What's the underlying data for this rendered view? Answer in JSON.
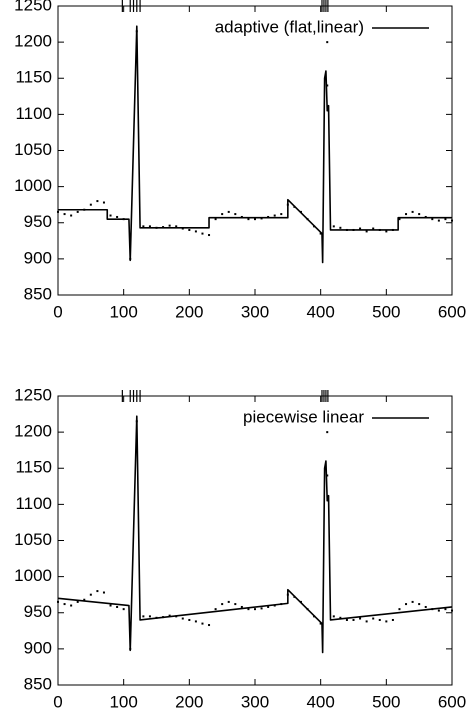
{
  "chart_data": [
    {
      "type": "line",
      "xlim": [
        0,
        600
      ],
      "xticks": [
        0,
        100,
        200,
        300,
        400,
        500,
        600
      ],
      "ylim": [
        850,
        1250
      ],
      "yticks": [
        850,
        900,
        950,
        1000,
        1050,
        1100,
        1150,
        1200,
        1250
      ],
      "legend": "top-right",
      "breakpoints": [
        98,
        110,
        115,
        120,
        125,
        402,
        405,
        408,
        411
      ],
      "series": [
        {
          "name": "adaptive (flat,linear)",
          "color": "#000000",
          "x": [
            0,
            75,
            75,
            108,
            110,
            120,
            125,
            230,
            230,
            350,
            350,
            402,
            403,
            406,
            408,
            410,
            412,
            415,
            518,
            518,
            600
          ],
          "values": [
            968,
            968,
            955,
            955,
            898,
            1222,
            943,
            943,
            957,
            957,
            982,
            935,
            895,
            1150,
            1160,
            1105,
            1112,
            940,
            940,
            957,
            957
          ]
        },
        {
          "color": "#000000",
          "marker": "dot",
          "x": [
            0,
            10,
            20,
            30,
            40,
            50,
            60,
            70,
            80,
            90,
            100,
            110,
            120,
            130,
            140,
            150,
            160,
            170,
            180,
            190,
            200,
            210,
            220,
            230,
            240,
            250,
            260,
            270,
            280,
            290,
            300,
            310,
            320,
            330,
            340,
            350,
            360,
            370,
            380,
            390,
            400,
            410,
            410,
            420,
            430,
            440,
            450,
            460,
            470,
            480,
            490,
            500,
            510,
            520,
            530,
            540,
            550,
            560,
            570,
            580,
            590,
            600
          ],
          "values": [
            965,
            962,
            960,
            965,
            968,
            975,
            980,
            978,
            960,
            958,
            955,
            900,
            1215,
            945,
            945,
            943,
            944,
            946,
            945,
            942,
            940,
            938,
            935,
            933,
            955,
            962,
            965,
            962,
            958,
            955,
            955,
            956,
            958,
            960,
            962,
            975,
            972,
            965,
            955,
            945,
            935,
            1140,
            1200,
            945,
            943,
            940,
            940,
            942,
            938,
            942,
            940,
            938,
            940,
            955,
            962,
            965,
            962,
            958,
            955,
            953,
            955,
            953
          ]
        }
      ]
    },
    {
      "type": "line",
      "xlim": [
        0,
        600
      ],
      "xticks": [
        0,
        100,
        200,
        300,
        400,
        500,
        600
      ],
      "ylim": [
        850,
        1250
      ],
      "yticks": [
        850,
        900,
        950,
        1000,
        1050,
        1100,
        1150,
        1200,
        1250
      ],
      "legend": "top-right",
      "breakpoints": [
        98,
        110,
        115,
        120,
        125,
        402,
        405,
        408,
        411
      ],
      "series": [
        {
          "name": "piecewise linear",
          "color": "#000000",
          "x": [
            0,
            108,
            110,
            120,
            125,
            350,
            350,
            402,
            403,
            406,
            408,
            410,
            412,
            415,
            600
          ],
          "values": [
            970,
            960,
            898,
            1222,
            940,
            963,
            982,
            935,
            895,
            1150,
            1160,
            1105,
            1112,
            940,
            958
          ]
        },
        {
          "color": "#000000",
          "marker": "dot",
          "x": [
            0,
            10,
            20,
            30,
            40,
            50,
            60,
            70,
            80,
            90,
            100,
            110,
            120,
            130,
            140,
            150,
            160,
            170,
            180,
            190,
            200,
            210,
            220,
            230,
            240,
            250,
            260,
            270,
            280,
            290,
            300,
            310,
            320,
            330,
            340,
            350,
            360,
            370,
            380,
            390,
            400,
            410,
            410,
            420,
            430,
            440,
            450,
            460,
            470,
            480,
            490,
            500,
            510,
            520,
            530,
            540,
            550,
            560,
            570,
            580,
            590,
            600
          ],
          "values": [
            965,
            962,
            960,
            965,
            968,
            975,
            980,
            978,
            960,
            958,
            955,
            900,
            1215,
            945,
            945,
            943,
            944,
            946,
            945,
            942,
            940,
            938,
            935,
            933,
            955,
            962,
            965,
            962,
            958,
            955,
            955,
            956,
            958,
            960,
            962,
            975,
            972,
            965,
            955,
            945,
            935,
            1140,
            1200,
            945,
            943,
            940,
            940,
            942,
            938,
            942,
            940,
            938,
            940,
            955,
            962,
            965,
            962,
            958,
            955,
            953,
            955,
            953
          ]
        }
      ]
    }
  ]
}
